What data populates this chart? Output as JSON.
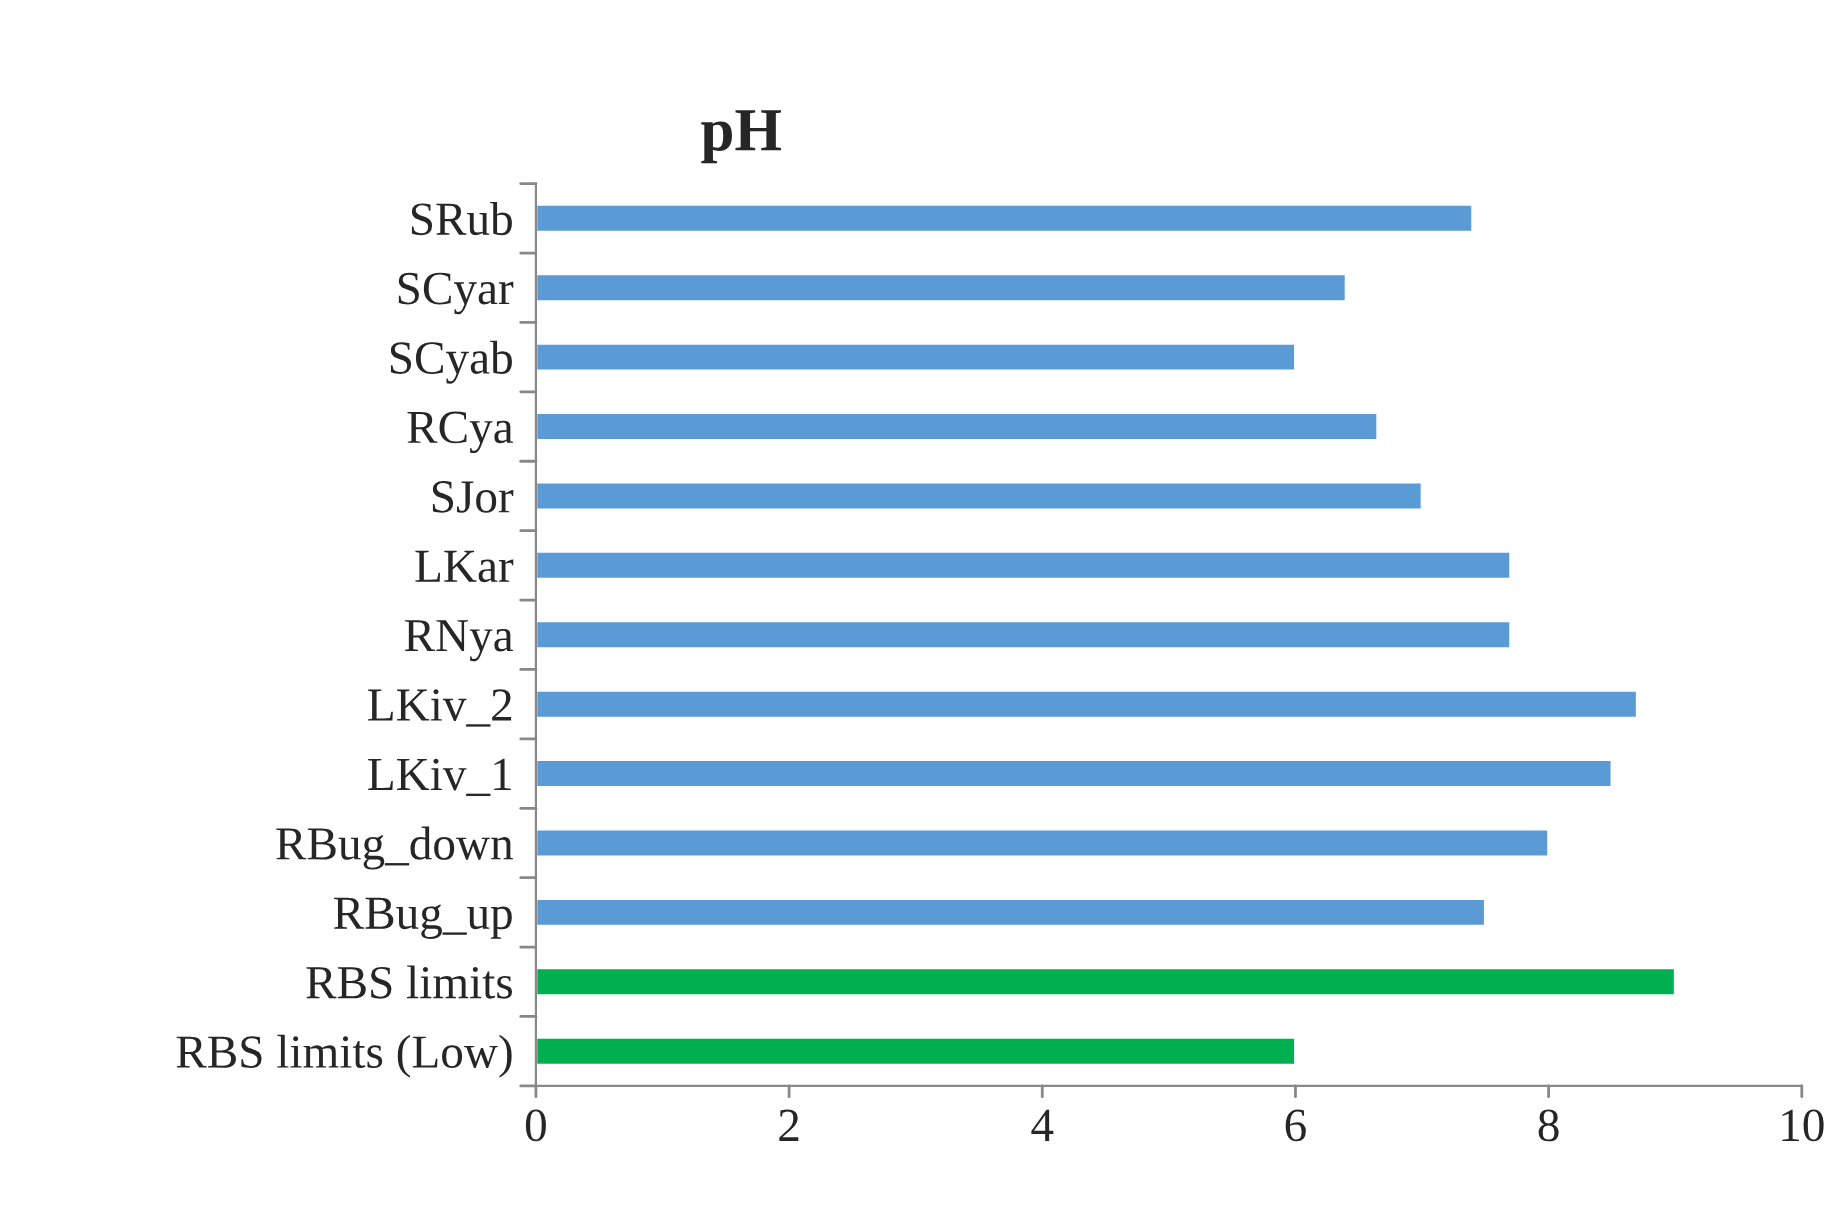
{
  "chart_data": {
    "type": "bar",
    "orientation": "horizontal",
    "title": "pH",
    "categories": [
      "SRub",
      "SCyar",
      "SCyab",
      "RCya",
      "SJor",
      "LKar",
      "RNya",
      "LKiv_2",
      "LKiv_1",
      "RBug_down",
      "RBug_up",
      "RBS limits",
      "RBS limits (Low)"
    ],
    "values": [
      7.4,
      6.4,
      6.0,
      6.65,
      7.0,
      7.7,
      7.7,
      8.7,
      8.5,
      8.0,
      7.5,
      9.0,
      6.0
    ],
    "colors": [
      "#5b9bd5",
      "#5b9bd5",
      "#5b9bd5",
      "#5b9bd5",
      "#5b9bd5",
      "#5b9bd5",
      "#5b9bd5",
      "#5b9bd5",
      "#5b9bd5",
      "#5b9bd5",
      "#5b9bd5",
      "#00b050",
      "#00b050"
    ],
    "xlim": [
      0,
      10
    ],
    "xticks": [
      0,
      2,
      4,
      6,
      8,
      10
    ],
    "grid": false,
    "legend": false
  }
}
